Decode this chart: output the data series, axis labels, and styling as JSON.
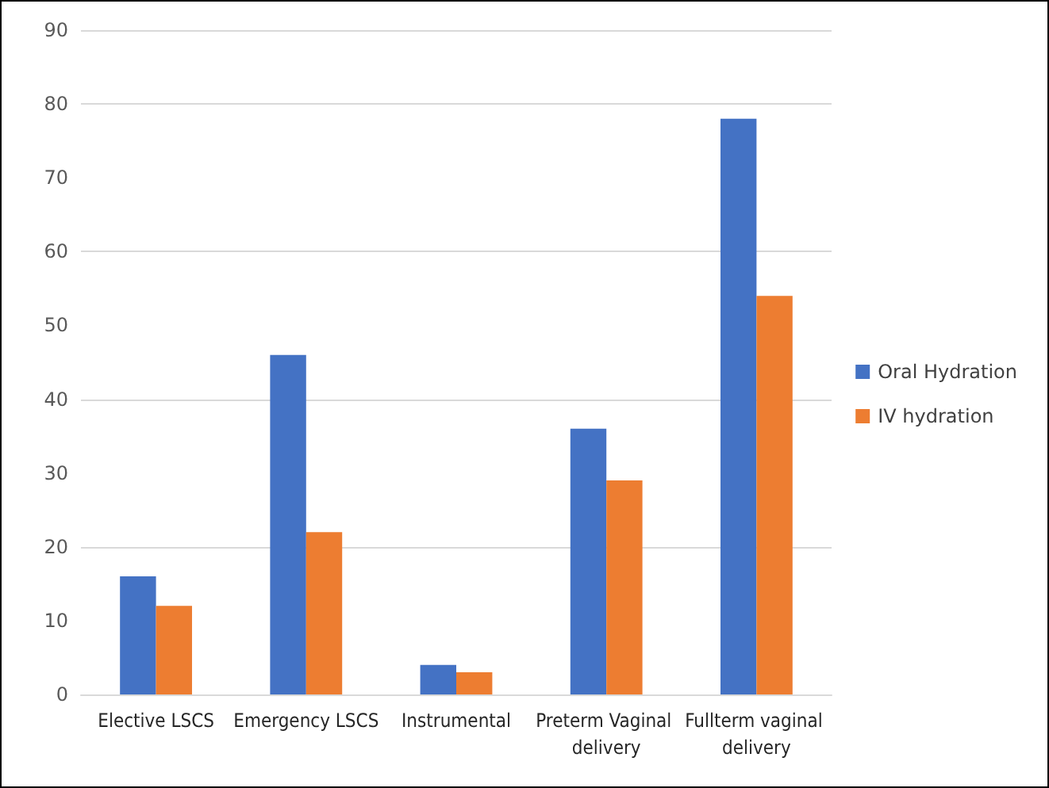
{
  "chart_data": {
    "type": "bar",
    "categories": [
      "Elective LSCS",
      "Emergency LSCS",
      "Instrumental",
      "Preterm Vaginal delivery",
      "Fullterm vaginal delivery"
    ],
    "series": [
      {
        "name": "Oral Hydration",
        "color": "#4472c4",
        "values": [
          16,
          46,
          4,
          36,
          78
        ]
      },
      {
        "name": "IV hydration",
        "color": "#ed7d31",
        "values": [
          12,
          22,
          3,
          29,
          54
        ]
      }
    ],
    "ylim": [
      0,
      90
    ],
    "yticks": [
      0,
      10,
      20,
      30,
      40,
      50,
      60,
      70,
      80,
      90
    ],
    "grid": "y",
    "legend": "right"
  }
}
